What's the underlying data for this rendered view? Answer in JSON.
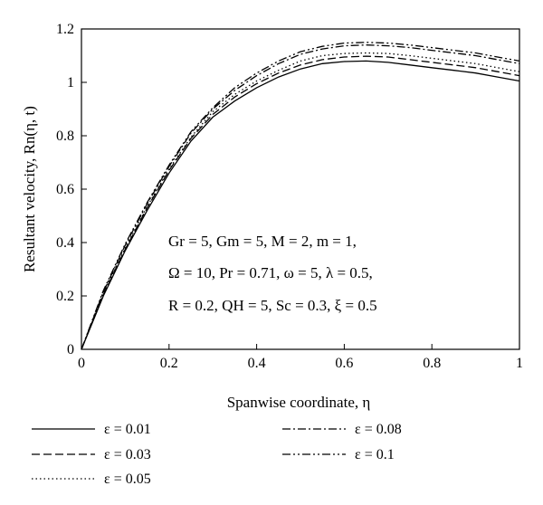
{
  "chart_data": {
    "type": "line",
    "xlabel": "Spanwise coordinate, η",
    "ylabel": "Resultant velocity, Rn(η, t)",
    "xlim": [
      0,
      1
    ],
    "ylim": [
      0,
      1.2
    ],
    "x_ticks": [
      0,
      0.2,
      0.4,
      0.6,
      0.8,
      1
    ],
    "y_ticks": [
      0,
      0.2,
      0.4,
      0.6,
      0.8,
      1,
      1.2
    ],
    "x_tick_labels": [
      "0",
      "0.2",
      "0.4",
      "0.6",
      "0.8",
      "1"
    ],
    "y_tick_labels": [
      "0",
      "0.2",
      "0.4",
      "0.6",
      "0.8",
      "1",
      "1.2"
    ],
    "grid": false,
    "legend_position": "bottom",
    "annotation_lines": [
      "Gr = 5, Gm = 5, M = 2, m = 1,",
      "Ω = 10, Pr = 0.71, ω = 5, λ = 0.5,",
      "R = 0.2, QH = 5, Sc = 0.3, ξ = 0.5"
    ],
    "x": [
      0,
      0.05,
      0.1,
      0.15,
      0.2,
      0.25,
      0.3,
      0.35,
      0.4,
      0.45,
      0.5,
      0.55,
      0.6,
      0.65,
      0.7,
      0.75,
      0.8,
      0.85,
      0.9,
      0.95,
      1
    ],
    "series": [
      {
        "name": "ε = 0.01",
        "dash": "solid",
        "values": [
          0,
          0.2,
          0.37,
          0.52,
          0.66,
          0.78,
          0.87,
          0.93,
          0.98,
          1.02,
          1.05,
          1.07,
          1.078,
          1.08,
          1.075,
          1.065,
          1.055,
          1.045,
          1.035,
          1.02,
          1.005
        ]
      },
      {
        "name": "ε = 0.03",
        "dash": "dashed",
        "values": [
          0,
          0.205,
          0.375,
          0.53,
          0.67,
          0.79,
          0.88,
          0.945,
          0.995,
          1.035,
          1.065,
          1.085,
          1.095,
          1.098,
          1.095,
          1.085,
          1.075,
          1.065,
          1.055,
          1.04,
          1.025
        ]
      },
      {
        "name": "ε = 0.05",
        "dash": "dotted",
        "values": [
          0,
          0.21,
          0.38,
          0.535,
          0.675,
          0.795,
          0.89,
          0.955,
          1.005,
          1.045,
          1.08,
          1.1,
          1.108,
          1.11,
          1.108,
          1.1,
          1.09,
          1.08,
          1.07,
          1.055,
          1.04
        ]
      },
      {
        "name": "ε = 0.08",
        "dash": "dashdot",
        "values": [
          0,
          0.215,
          0.39,
          0.545,
          0.685,
          0.81,
          0.9,
          0.97,
          1.025,
          1.07,
          1.105,
          1.125,
          1.137,
          1.14,
          1.137,
          1.13,
          1.12,
          1.11,
          1.1,
          1.085,
          1.07
        ]
      },
      {
        "name": "ε = 0.1",
        "dash": "dashdotdot",
        "values": [
          0,
          0.22,
          0.395,
          0.55,
          0.69,
          0.815,
          0.905,
          0.98,
          1.035,
          1.08,
          1.115,
          1.135,
          1.147,
          1.15,
          1.147,
          1.14,
          1.13,
          1.12,
          1.11,
          1.095,
          1.08
        ]
      }
    ]
  }
}
